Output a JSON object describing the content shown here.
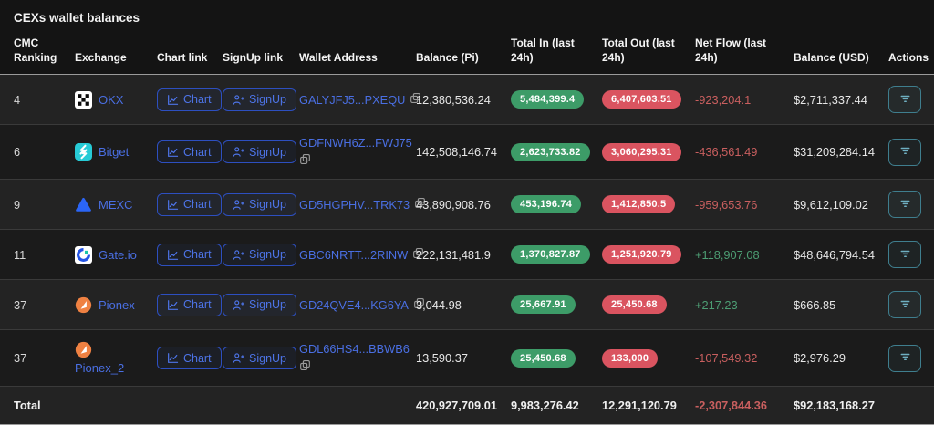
{
  "page": {
    "title": "CEXs wallet balances"
  },
  "colors": {
    "link_blue": "#4a6fe3",
    "pill_green": "#3d9c68",
    "pill_red": "#da5460",
    "positive_green": "#4d9e74",
    "negative_red": "#c95f5f",
    "action_teal": "#6fb0c2"
  },
  "table": {
    "columns": [
      "CMC Ranking",
      "Exchange",
      "Chart link",
      "SignUp link",
      "Wallet Address",
      "Balance (Pi)",
      "Total In (last 24h)",
      "Total Out (last 24h)",
      "Net Flow (last 24h)",
      "Balance (USD)",
      "Actions"
    ],
    "buttons": {
      "chart": "Chart",
      "signup": "SignUp"
    },
    "rows": [
      {
        "cmc_ranking": "4",
        "exchange": "OKX",
        "icon": "okx",
        "exchange_wrap": false,
        "wallet_address": "GALYJFJ5...PXEQU",
        "address_wrap": false,
        "balance_pi": "12,380,536.24",
        "total_in": "5,484,399.4",
        "total_out": "6,407,603.51",
        "net_flow": "-923,204.1",
        "balance_usd": "$2,711,337.44"
      },
      {
        "cmc_ranking": "6",
        "exchange": "Bitget",
        "icon": "bitget",
        "exchange_wrap": false,
        "wallet_address": "GDFNWH6Z...FWJ75",
        "address_wrap": true,
        "balance_pi": "142,508,146.74",
        "total_in": "2,623,733.82",
        "total_out": "3,060,295.31",
        "net_flow": "-436,561.49",
        "balance_usd": "$31,209,284.14"
      },
      {
        "cmc_ranking": "9",
        "exchange": "MEXC",
        "icon": "mexc",
        "exchange_wrap": false,
        "wallet_address": "GD5HGPHV...TRK73",
        "address_wrap": false,
        "balance_pi": "43,890,908.76",
        "total_in": "453,196.74",
        "total_out": "1,412,850.5",
        "net_flow": "-959,653.76",
        "balance_usd": "$9,612,109.02"
      },
      {
        "cmc_ranking": "11",
        "exchange": "Gate.io",
        "icon": "gateio",
        "exchange_wrap": false,
        "wallet_address": "GBC6NRTT...2RINW",
        "address_wrap": false,
        "balance_pi": "222,131,481.9",
        "total_in": "1,370,827.87",
        "total_out": "1,251,920.79",
        "net_flow": "+118,907.08",
        "balance_usd": "$48,646,794.54"
      },
      {
        "cmc_ranking": "37",
        "exchange": "Pionex",
        "icon": "pionex",
        "exchange_wrap": false,
        "wallet_address": "GD24QVE4...KG6YA",
        "address_wrap": false,
        "balance_pi": "3,044.98",
        "total_in": "25,667.91",
        "total_out": "25,450.68",
        "net_flow": "+217.23",
        "balance_usd": "$666.85"
      },
      {
        "cmc_ranking": "37",
        "exchange": "Pionex_2",
        "icon": "pionex",
        "exchange_wrap": true,
        "wallet_address": "GDL66HS4...BBWB6",
        "address_wrap": true,
        "balance_pi": "13,590.37",
        "total_in": "25,450.68",
        "total_out": "133,000",
        "net_flow": "-107,549.32",
        "balance_usd": "$2,976.29"
      }
    ],
    "total": {
      "label": "Total",
      "balance_pi": "420,927,709.01",
      "total_in": "9,983,276.42",
      "total_out": "12,291,120.79",
      "net_flow": "-2,307,844.36",
      "balance_usd": "$92,183,168.27"
    }
  }
}
